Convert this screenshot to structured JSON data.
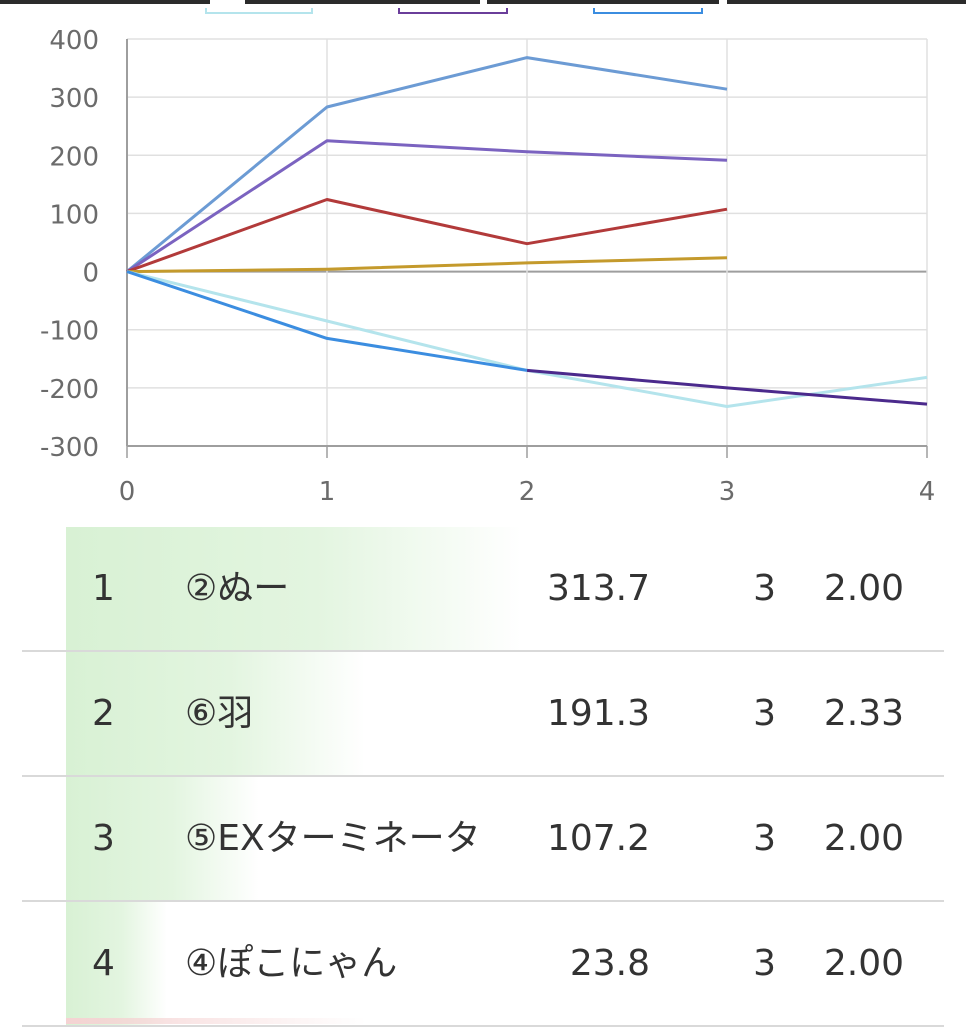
{
  "chart_data": {
    "type": "line",
    "xlim": [
      0,
      4
    ],
    "ylim": [
      -300,
      400
    ],
    "x_ticks": [
      "0",
      "1",
      "2",
      "3",
      "4"
    ],
    "y_ticks": [
      "400",
      "300",
      "200",
      "100",
      "0",
      "-100",
      "-200",
      "-300"
    ],
    "grid": true,
    "legend_position": "top",
    "series": [
      {
        "color": "#6c9bd4",
        "points": [
          [
            0,
            0
          ],
          [
            1,
            283
          ],
          [
            2,
            368
          ],
          [
            3,
            313.7
          ]
        ]
      },
      {
        "color": "#7b63c0",
        "points": [
          [
            0,
            0
          ],
          [
            1,
            225
          ],
          [
            2,
            206
          ],
          [
            3,
            191.3
          ]
        ]
      },
      {
        "color": "#b23a3a",
        "points": [
          [
            0,
            0
          ],
          [
            1,
            124
          ],
          [
            2,
            48
          ],
          [
            3,
            107.2
          ]
        ]
      },
      {
        "color": "#c49a2c",
        "points": [
          [
            0,
            0
          ],
          [
            1,
            4
          ],
          [
            2,
            15
          ],
          [
            3,
            23.8
          ]
        ]
      },
      {
        "color": "#b4e4ec",
        "points": [
          [
            0,
            0
          ],
          [
            1,
            -85
          ],
          [
            2,
            -170
          ],
          [
            3,
            -232
          ],
          [
            4,
            -182
          ]
        ]
      },
      {
        "color": "#4b2a8c",
        "points": [
          [
            2,
            -170
          ],
          [
            3,
            -200
          ],
          [
            4,
            -228
          ]
        ]
      },
      {
        "color": "#3b8de0",
        "points": [
          [
            0,
            0
          ],
          [
            1,
            -115
          ],
          [
            2,
            -170
          ]
        ]
      }
    ]
  },
  "legend": [
    {
      "color": "#b4e4ec"
    },
    {
      "color": "#6a3d9a"
    },
    {
      "color": "#3b8de0"
    }
  ],
  "table": {
    "rows": [
      {
        "rank": "1",
        "name": "②ぬー",
        "score": "313.7",
        "games": "3",
        "avg": "2.00",
        "bar": 0.99
      },
      {
        "rank": "2",
        "name": "⑥羽",
        "score": "191.3",
        "games": "3",
        "avg": "2.33",
        "bar": 0.65
      },
      {
        "rank": "3",
        "name": "⑤EXターミネータ",
        "score": "107.2",
        "games": "3",
        "avg": "2.00",
        "bar": 0.42
      },
      {
        "rank": "4",
        "name": "④ぽこにゃん",
        "score": "23.8",
        "games": "3",
        "avg": "2.00",
        "bar": 0.22
      }
    ]
  }
}
